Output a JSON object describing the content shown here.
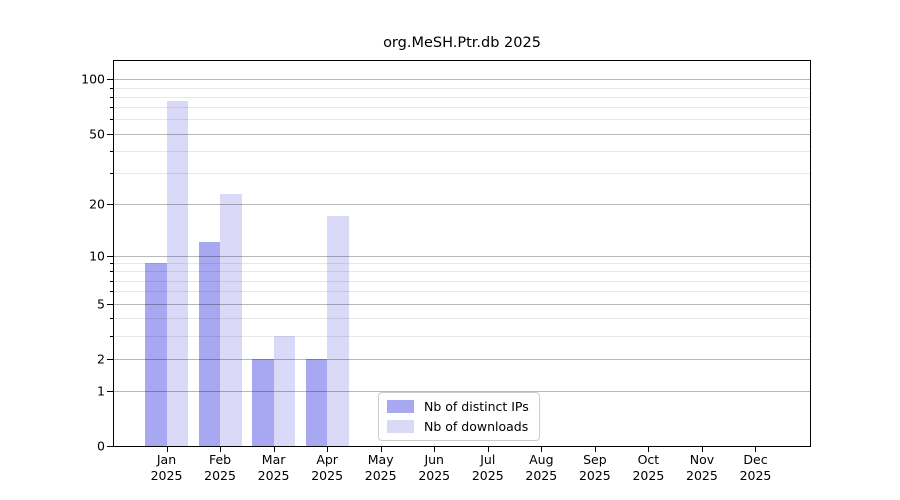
{
  "chart_data": {
    "type": "bar",
    "title": "org.MeSH.Ptr.db 2025",
    "categories": [
      "Jan",
      "Feb",
      "Mar",
      "Apr",
      "May",
      "Jun",
      "Jul",
      "Aug",
      "Sep",
      "Oct",
      "Nov",
      "Dec"
    ],
    "year": "2025",
    "series": [
      {
        "name": "Nb of distinct IPs",
        "color": "#a8a8f2",
        "values": [
          9,
          12,
          2,
          2,
          0,
          0,
          0,
          0,
          0,
          0,
          0,
          0
        ]
      },
      {
        "name": "Nb of downloads",
        "color": "#dadaf8",
        "values": [
          76,
          23,
          3,
          17,
          0,
          0,
          0,
          0,
          0,
          0,
          0,
          0
        ]
      }
    ],
    "yscale": "log(1+x)",
    "yticks": [
      0,
      1,
      2,
      5,
      10,
      20,
      50,
      100
    ],
    "minor_yticks": [
      3,
      4,
      6,
      7,
      8,
      9,
      30,
      40,
      60,
      70,
      80,
      90
    ],
    "ylim": [
      0,
      128
    ],
    "xlabel": "",
    "ylabel": "",
    "grid": true,
    "legend_position": "lower center"
  }
}
